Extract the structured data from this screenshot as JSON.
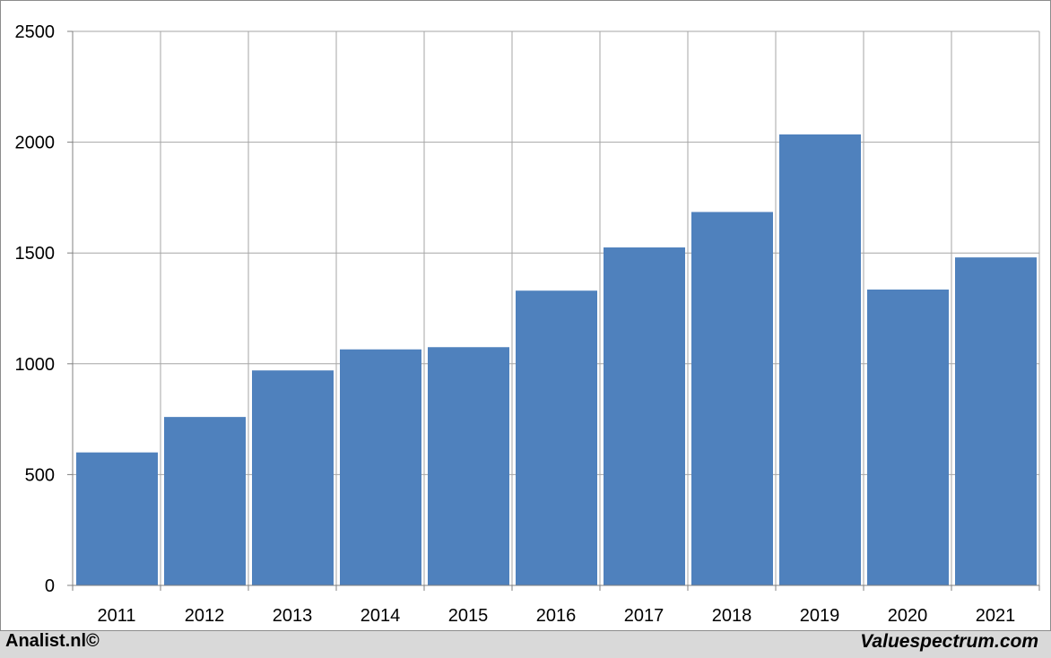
{
  "chart_data": {
    "type": "bar",
    "categories": [
      "2011",
      "2012",
      "2013",
      "2014",
      "2015",
      "2016",
      "2017",
      "2018",
      "2019",
      "2020",
      "2021"
    ],
    "values": [
      600,
      760,
      970,
      1065,
      1075,
      1330,
      1525,
      1685,
      2035,
      1335,
      1480
    ],
    "ylim": [
      0,
      2500
    ],
    "yticks": [
      0,
      500,
      1000,
      1500,
      2000,
      2500
    ],
    "grid": true,
    "bar_color": "#4f81bd",
    "grid_color": "#a6a6a6"
  },
  "footer": {
    "left": "Analist.nl©",
    "right": "Valuespectrum.com"
  }
}
